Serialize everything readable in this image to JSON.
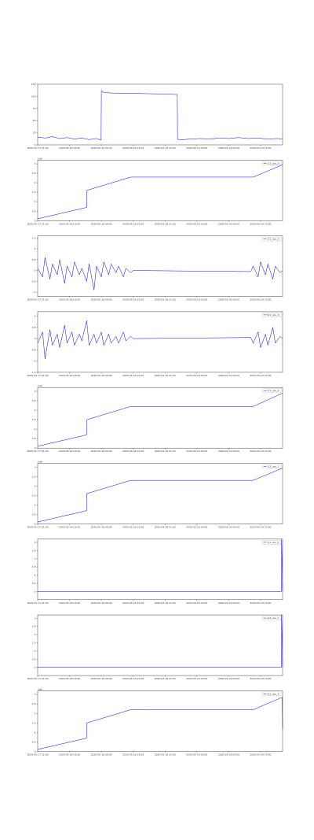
{
  "chart_data": [
    {
      "type": "line",
      "x": [
        0,
        3,
        6,
        9,
        12,
        15,
        18,
        21,
        24,
        25.9,
        26,
        27,
        30,
        40,
        50,
        57,
        57.1,
        58,
        62,
        66,
        70,
        74,
        78,
        82,
        86,
        90,
        94,
        98,
        100
      ],
      "series": [
        {
          "color": "#0000ff",
          "values": [
            16,
            14,
            17,
            13,
            15,
            12,
            14,
            11,
            13,
            10,
            112,
            108,
            107,
            106,
            105,
            104,
            12,
            10,
            12,
            13,
            12,
            14,
            13,
            15,
            13,
            14,
            12,
            13,
            12
          ]
        }
      ],
      "xlim": [
        0,
        100
      ],
      "ylim": [
        0,
        125
      ],
      "yticks": [
        0,
        25,
        50,
        75,
        100,
        125
      ],
      "xticks": [
        {
          "value": 0,
          "label": "2020-05-17 21:00"
        },
        {
          "value": 13,
          "label": "2020-05-18 03:00"
        },
        {
          "value": 26,
          "label": "2020-05-18 09:00"
        },
        {
          "value": 39,
          "label": "2020-05-18 15:00"
        },
        {
          "value": 52,
          "label": "2020-05-18 21:00"
        },
        {
          "value": 65,
          "label": "2020-05-19 03:00"
        },
        {
          "value": 78,
          "label": "2020-05-19 09:00"
        },
        {
          "value": 91,
          "label": "2020-05-19 15:00"
        }
      ]
    },
    {
      "type": "line",
      "offset_label": "1e6",
      "x": [
        0,
        20,
        20.1,
        38,
        88,
        100
      ],
      "series": [
        {
          "name": "1/2_cpu_0",
          "color": "#0000ff",
          "values": [
            0.1,
            0.7,
            1.6,
            2.3,
            2.3,
            2.95
          ]
        }
      ],
      "xlim": [
        0,
        100
      ],
      "ylim": [
        0,
        3.2
      ],
      "yticks": [
        0,
        0.5,
        1,
        1.5,
        2,
        2.5,
        3
      ],
      "xticks": [
        {
          "value": 0,
          "label": "2020-05-17 21:00"
        },
        {
          "value": 13,
          "label": "2020-05-18 03:00"
        },
        {
          "value": 26,
          "label": "2020-05-18 09:00"
        },
        {
          "value": 39,
          "label": "2020-05-18 15:00"
        },
        {
          "value": 52,
          "label": "2020-05-18 21:00"
        },
        {
          "value": 65,
          "label": "2020-05-19 03:00"
        },
        {
          "value": 78,
          "label": "2020-05-19 09:00"
        },
        {
          "value": 91,
          "label": "2020-05-19 15:00"
        }
      ]
    },
    {
      "type": "line",
      "x": [
        0,
        2,
        3,
        5,
        6,
        8,
        9,
        11,
        12,
        14,
        15,
        17,
        18,
        20,
        21,
        23,
        24,
        26,
        27,
        29,
        30,
        32,
        33,
        35,
        36,
        38,
        39,
        87,
        88,
        90,
        91,
        93,
        94,
        96,
        97,
        99,
        100
      ],
      "series": [
        {
          "name": "2/1_cpu_0",
          "color": "#0000ff",
          "values": [
            0.1,
            -0.3,
            0.6,
            -0.4,
            0.3,
            -0.2,
            0.5,
            -0.6,
            0.2,
            -0.3,
            0.4,
            -0.2,
            0.1,
            -0.5,
            0.3,
            -0.9,
            0.2,
            -0.3,
            0.4,
            -0.2,
            0.3,
            -0.1,
            0.2,
            -0.3,
            0.1,
            -0.1,
            0,
            -0.05,
            0.2,
            -0.3,
            0.4,
            -0.2,
            0.3,
            -0.4,
            0.2,
            -0.1,
            0
          ]
        }
      ],
      "xlim": [
        0,
        100
      ],
      "ylim": [
        -1.2,
        1.6
      ],
      "yticks": [
        -1,
        -0.5,
        0,
        0.5,
        1,
        1.5
      ],
      "xticks": [
        {
          "value": 0,
          "label": "2020-05-17 21:00"
        },
        {
          "value": 13,
          "label": "2020-05-18 03:00"
        },
        {
          "value": 26,
          "label": "2020-05-18 09:00"
        },
        {
          "value": 39,
          "label": "2020-05-18 15:00"
        },
        {
          "value": 52,
          "label": "2020-05-18 21:00"
        },
        {
          "value": 65,
          "label": "2020-05-19 03:00"
        },
        {
          "value": 78,
          "label": "2020-05-19 09:00"
        },
        {
          "value": 91,
          "label": "2020-05-19 15:00"
        }
      ]
    },
    {
      "type": "line",
      "x": [
        0,
        2,
        3,
        5,
        6,
        8,
        9,
        11,
        12,
        14,
        15,
        17,
        18,
        20,
        21,
        23,
        24,
        26,
        27,
        29,
        30,
        32,
        33,
        35,
        36,
        38,
        39,
        87,
        88,
        90,
        91,
        93,
        94,
        96,
        97,
        99,
        100
      ],
      "series": [
        {
          "name": "2/2_cpu_0",
          "color": "#0000ff",
          "values": [
            -0.2,
            0.3,
            -0.9,
            0.4,
            -0.3,
            0.2,
            -0.4,
            0.6,
            -0.2,
            0.3,
            -0.3,
            0.2,
            -0.1,
            0.8,
            -0.3,
            0.2,
            -0.2,
            0.3,
            -0.3,
            0.2,
            -0.2,
            0.1,
            -0.2,
            0.3,
            -0.1,
            0.1,
            0,
            0.05,
            -0.2,
            0.3,
            -0.4,
            0.2,
            -0.3,
            0.5,
            -0.2,
            0.1,
            0
          ]
        }
      ],
      "xlim": [
        0,
        100
      ],
      "ylim": [
        -1.5,
        1.2
      ],
      "yticks": [
        -1.5,
        -1,
        -0.5,
        0,
        0.5,
        1
      ],
      "xticks": [
        {
          "value": 0,
          "label": "2020-05-17 21:00"
        },
        {
          "value": 13,
          "label": "2020-05-18 03:00"
        },
        {
          "value": 26,
          "label": "2020-05-18 09:00"
        },
        {
          "value": 39,
          "label": "2020-05-18 15:00"
        },
        {
          "value": 52,
          "label": "2020-05-18 21:00"
        },
        {
          "value": 65,
          "label": "2020-05-19 03:00"
        },
        {
          "value": 78,
          "label": "2020-05-19 09:00"
        },
        {
          "value": 91,
          "label": "2020-05-19 15:00"
        }
      ]
    },
    {
      "type": "line",
      "offset_label": "1e6",
      "x": [
        0,
        20,
        20.1,
        38,
        88,
        100
      ],
      "series": [
        {
          "name": "1/1_cpu_1",
          "color": "#0000ff",
          "values": [
            0.1,
            0.7,
            1.5,
            2.2,
            2.2,
            2.9
          ]
        }
      ],
      "xlim": [
        0,
        100
      ],
      "ylim": [
        0,
        3.2
      ],
      "yticks": [
        0,
        0.5,
        1,
        1.5,
        2,
        2.5,
        3
      ],
      "xticks": [
        {
          "value": 0,
          "label": "2020-05-17 21:00"
        },
        {
          "value": 13,
          "label": "2020-05-18 03:00"
        },
        {
          "value": 26,
          "label": "2020-05-18 09:00"
        },
        {
          "value": 39,
          "label": "2020-05-18 15:00"
        },
        {
          "value": 52,
          "label": "2020-05-18 21:00"
        },
        {
          "value": 65,
          "label": "2020-05-19 03:00"
        },
        {
          "value": 78,
          "label": "2020-05-19 09:00"
        },
        {
          "value": 91,
          "label": "2020-05-19 15:00"
        }
      ]
    },
    {
      "type": "line",
      "offset_label": "1e6",
      "x": [
        0,
        20,
        20.1,
        38,
        88,
        100
      ],
      "series": [
        {
          "name": "1/2_cpu_1",
          "color": "#0000ff",
          "values": [
            0.1,
            0.7,
            1.6,
            2.3,
            2.3,
            2.95
          ]
        }
      ],
      "xlim": [
        0,
        100
      ],
      "ylim": [
        0,
        3.2
      ],
      "yticks": [
        0,
        0.5,
        1,
        1.5,
        2,
        2.5,
        3
      ],
      "xticks": [
        {
          "value": 0,
          "label": "2020-05-17 21:00"
        },
        {
          "value": 13,
          "label": "2020-05-18 03:00"
        },
        {
          "value": 26,
          "label": "2020-05-18 09:00"
        },
        {
          "value": 39,
          "label": "2020-05-18 15:00"
        },
        {
          "value": 52,
          "label": "2020-05-18 21:00"
        },
        {
          "value": 65,
          "label": "2020-05-19 03:00"
        },
        {
          "value": 78,
          "label": "2020-05-19 09:00"
        },
        {
          "value": 91,
          "label": "2020-05-19 15:00"
        }
      ]
    },
    {
      "type": "line",
      "x": [
        0,
        99.5,
        99.6,
        100
      ],
      "series": [
        {
          "name": "2/1_cpu_1",
          "color": "#0000ff",
          "values": [
            0,
            0,
            3.2,
            0
          ]
        }
      ],
      "xlim": [
        0,
        100
      ],
      "ylim": [
        -0.5,
        3.2
      ],
      "yticks": [
        0,
        0.5,
        1,
        1.5,
        2,
        2.5,
        3
      ],
      "xticks": [
        {
          "value": 0,
          "label": "2020-05-17 21:00"
        },
        {
          "value": 13,
          "label": "2020-05-18 03:00"
        },
        {
          "value": 26,
          "label": "2020-05-18 09:00"
        },
        {
          "value": 39,
          "label": "2020-05-18 15:00"
        },
        {
          "value": 52,
          "label": "2020-05-18 21:00"
        },
        {
          "value": 65,
          "label": "2020-05-19 03:00"
        },
        {
          "value": 78,
          "label": "2020-05-19 09:00"
        },
        {
          "value": 91,
          "label": "2020-05-19 15:00"
        }
      ]
    },
    {
      "type": "line",
      "x": [
        0,
        99.5,
        99.6,
        100
      ],
      "series": [
        {
          "name": "2/2_cpu_1",
          "color": "#0000ff",
          "values": [
            0,
            0,
            3.2,
            0
          ]
        }
      ],
      "xlim": [
        0,
        100
      ],
      "ylim": [
        -0.5,
        3.2
      ],
      "yticks": [
        0,
        0.5,
        1,
        1.5,
        2,
        2.5,
        3
      ],
      "xticks": [
        {
          "value": 0,
          "label": "2020-05-17 21:00"
        },
        {
          "value": 13,
          "label": "2020-05-18 03:00"
        },
        {
          "value": 26,
          "label": "2020-05-18 09:00"
        },
        {
          "value": 39,
          "label": "2020-05-18 15:00"
        },
        {
          "value": 52,
          "label": "2020-05-18 21:00"
        },
        {
          "value": 65,
          "label": "2020-05-19 03:00"
        },
        {
          "value": 78,
          "label": "2020-05-19 09:00"
        },
        {
          "value": 91,
          "label": "2020-05-19 15:00"
        }
      ]
    },
    {
      "type": "line",
      "offset_label": "1e6",
      "x": [
        0,
        20,
        20.1,
        38,
        88,
        99.8,
        100
      ],
      "series": [
        {
          "name": "3/1_cpu_0",
          "color": "#0000ff",
          "values": [
            0.1,
            0.7,
            1.5,
            2.2,
            2.2,
            2.85,
            1.2
          ]
        }
      ],
      "xlim": [
        0,
        100
      ],
      "ylim": [
        0,
        3.2
      ],
      "yticks": [
        0,
        0.5,
        1,
        1.5,
        2,
        2.5,
        3
      ],
      "xticks": [
        {
          "value": 0,
          "label": "2020-05-17 21:00"
        },
        {
          "value": 13,
          "label": "2020-05-18 03:00"
        },
        {
          "value": 26,
          "label": "2020-05-18 09:00"
        },
        {
          "value": 39,
          "label": "2020-05-18 15:00"
        },
        {
          "value": 52,
          "label": "2020-05-18 21:00"
        },
        {
          "value": 65,
          "label": "2020-05-19 03:00"
        },
        {
          "value": 78,
          "label": "2020-05-19 09:00"
        },
        {
          "value": 91,
          "label": "2020-05-19 15:00"
        }
      ]
    }
  ]
}
